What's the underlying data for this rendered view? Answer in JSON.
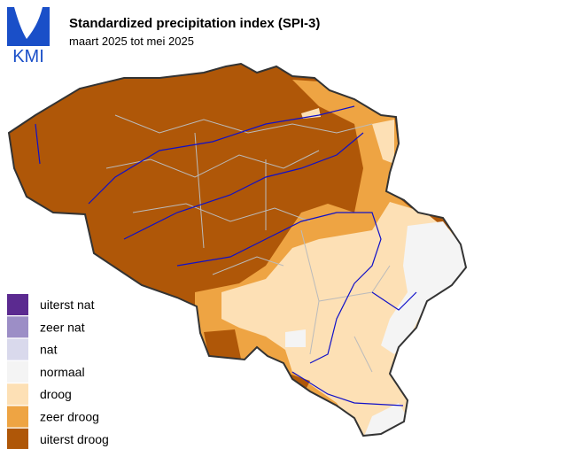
{
  "header": {
    "title": "Standardized precipitation index (SPI-3)",
    "subtitle": "maart 2025 tot mei 2025"
  },
  "logo": "KMI",
  "legend": [
    {
      "label": "uiterst nat",
      "color": "#5b2a90"
    },
    {
      "label": "zeer nat",
      "color": "#9c8ec6"
    },
    {
      "label": "nat",
      "color": "#d9d9ec"
    },
    {
      "label": "normaal",
      "color": "#f4f4f4"
    },
    {
      "label": "droog",
      "color": "#fde0b5"
    },
    {
      "label": "zeer droog",
      "color": "#eea443"
    },
    {
      "label": "uiterst droog",
      "color": "#af5708"
    }
  ]
}
